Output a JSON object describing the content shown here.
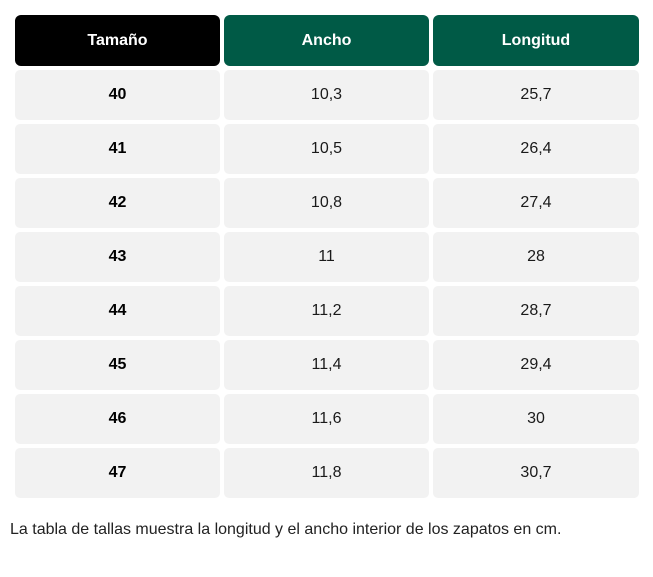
{
  "table": {
    "headers": [
      "Tamaño",
      "Ancho",
      "Longitud"
    ],
    "rows": [
      {
        "size": "40",
        "width": "10,3",
        "length": "25,7"
      },
      {
        "size": "41",
        "width": "10,5",
        "length": "26,4"
      },
      {
        "size": "42",
        "width": "10,8",
        "length": "27,4"
      },
      {
        "size": "43",
        "width": "11",
        "length": "28"
      },
      {
        "size": "44",
        "width": "11,2",
        "length": "28,7"
      },
      {
        "size": "45",
        "width": "11,4",
        "length": "29,4"
      },
      {
        "size": "46",
        "width": "11,6",
        "length": "30"
      },
      {
        "size": "47",
        "width": "11,8",
        "length": "30,7"
      }
    ]
  },
  "caption": "La tabla de tallas muestra la longitud y el ancho interior de los zapatos en cm.",
  "colors": {
    "header_first": "#000000",
    "header_accent": "#005a46",
    "cell_background": "#f2f2f2"
  }
}
